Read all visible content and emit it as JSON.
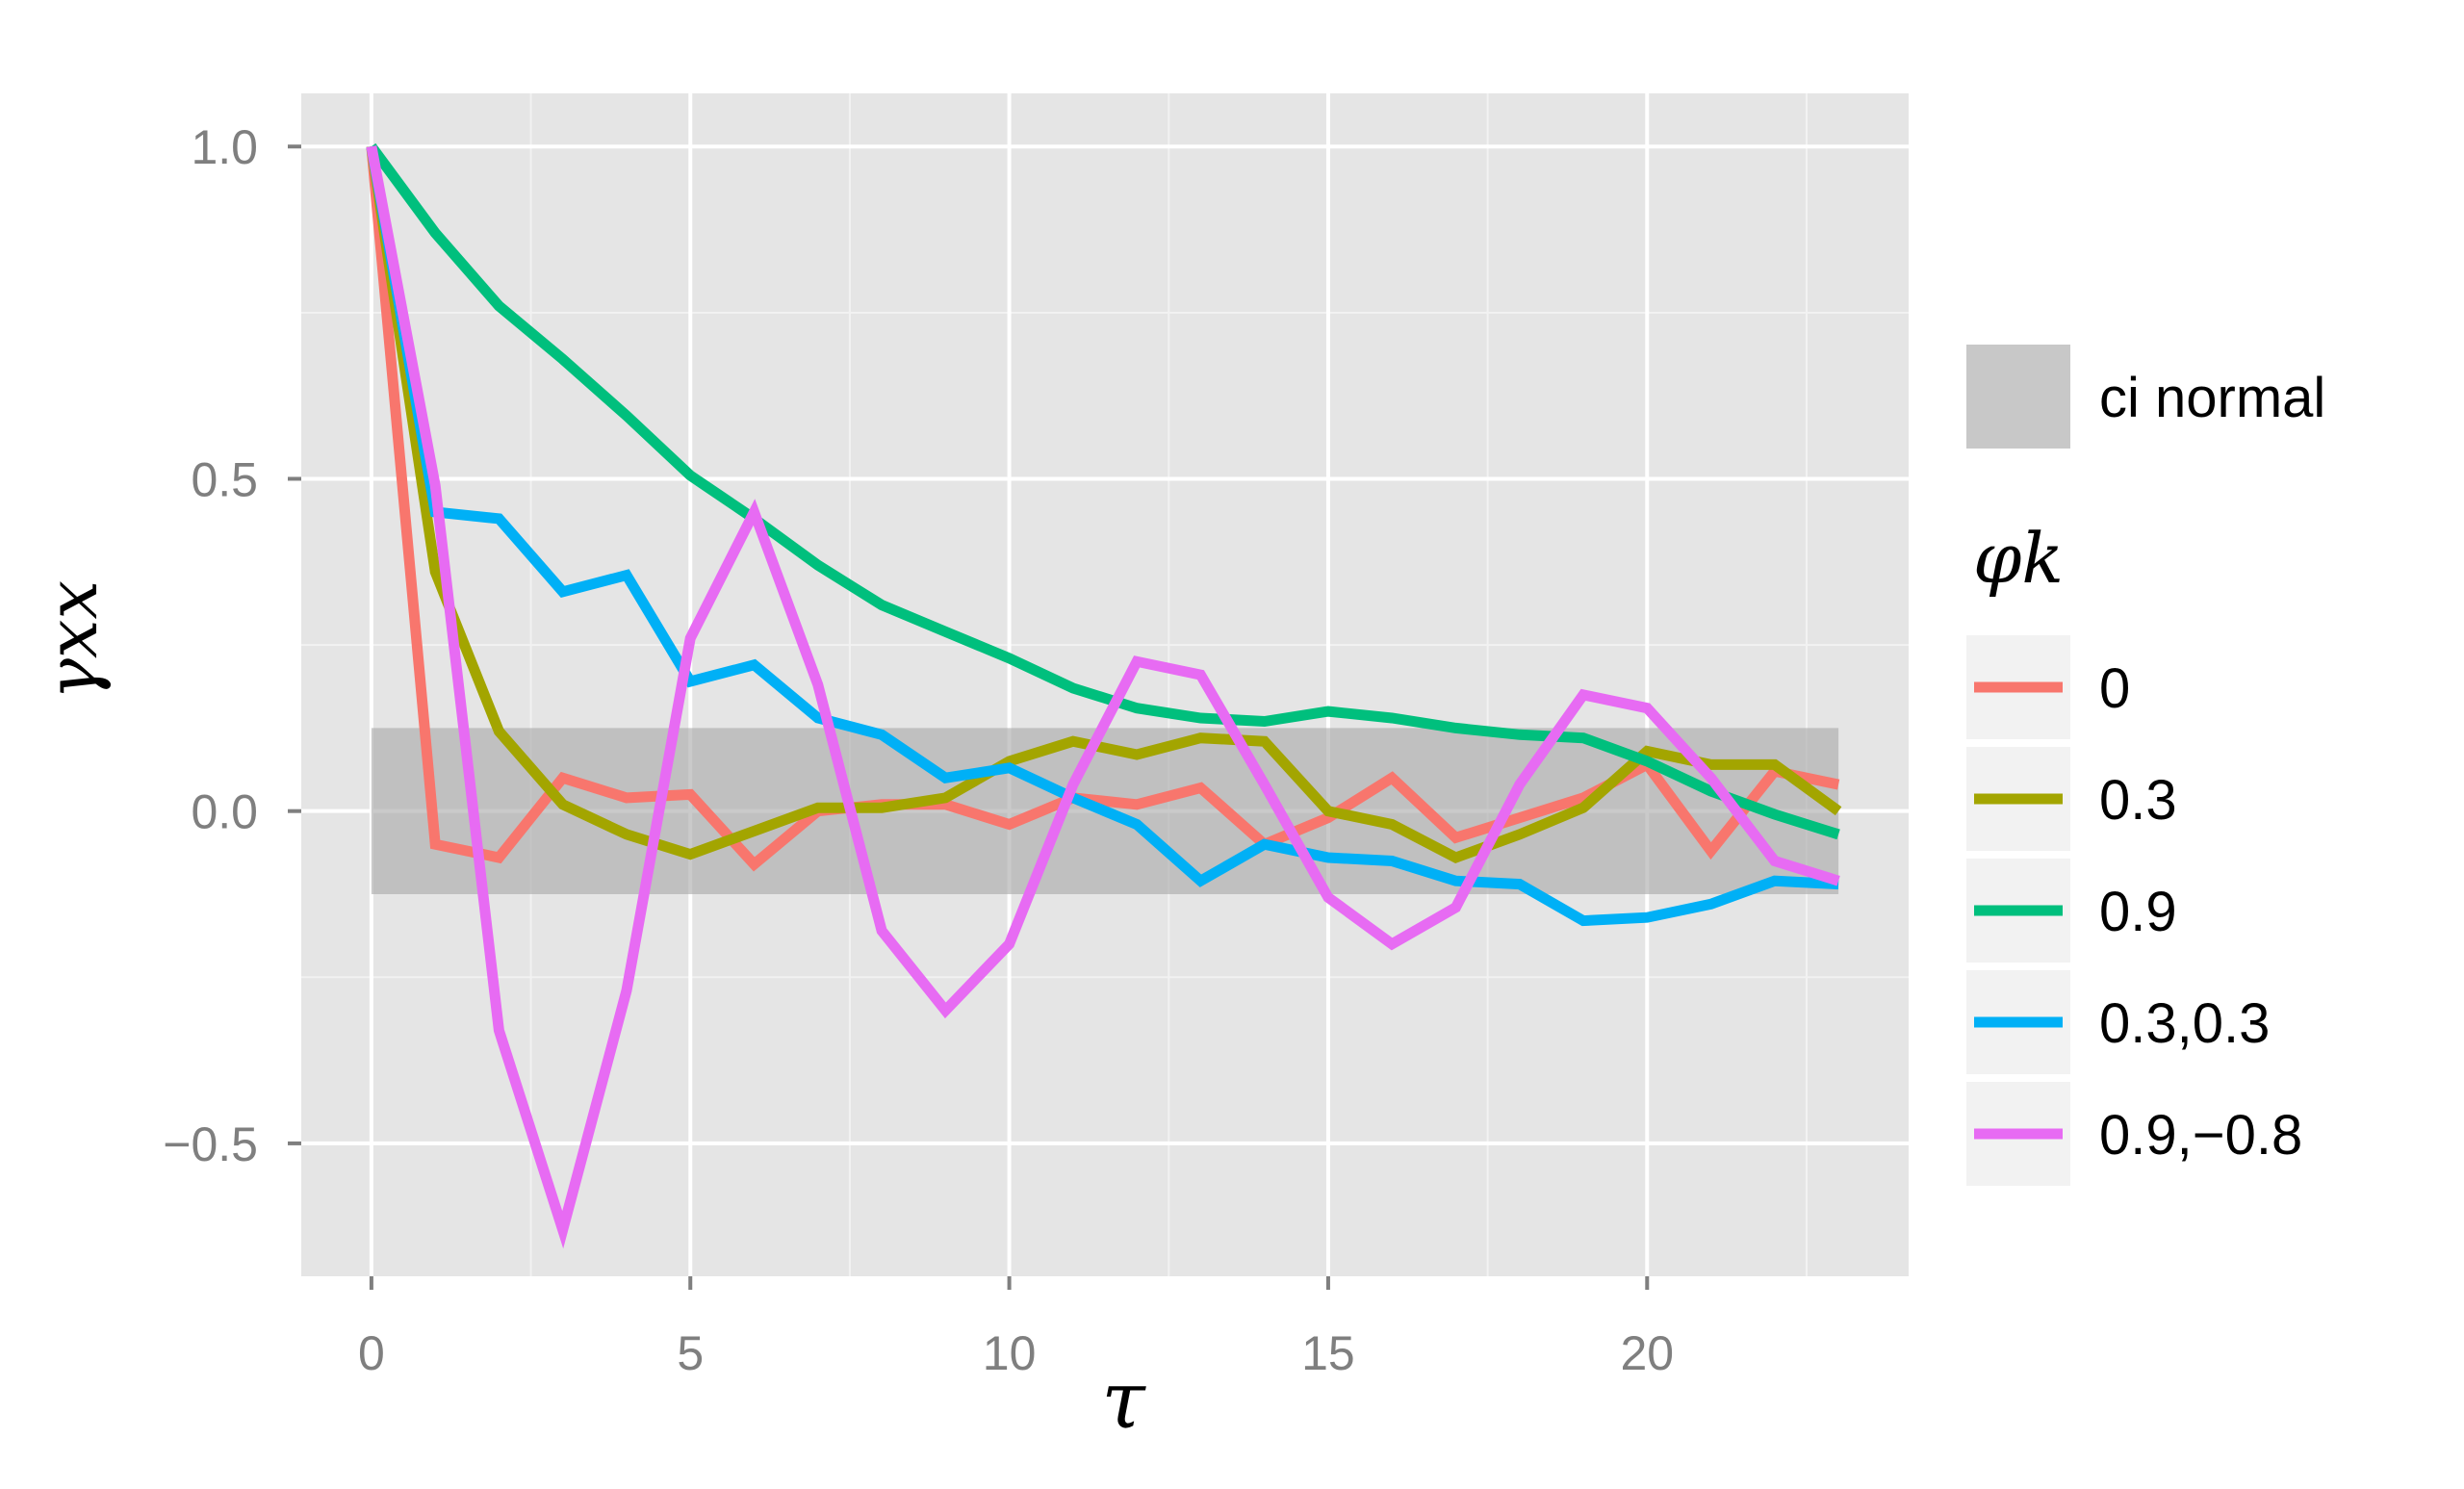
{
  "chart_data": {
    "type": "line",
    "title": "",
    "xlabel": "τ",
    "ylabel": "γxx",
    "xlim": [
      -1.1,
      24.1
    ],
    "ylim": [
      -0.7,
      1.08
    ],
    "x_ticks": [
      {
        "value": 0,
        "label": "0"
      },
      {
        "value": 5,
        "label": "5"
      },
      {
        "value": 10,
        "label": "10"
      },
      {
        "value": 15,
        "label": "15"
      },
      {
        "value": 20,
        "label": "20"
      }
    ],
    "y_ticks": [
      {
        "value": -0.5,
        "label": "−0.5"
      },
      {
        "value": 0,
        "label": "0.0"
      },
      {
        "value": 0.5,
        "label": "0.5"
      },
      {
        "value": 1,
        "label": "1.0"
      }
    ],
    "grid": true,
    "legend_position": "right",
    "ci_band": {
      "label": "ci normal",
      "lower": -0.125,
      "upper": 0.125,
      "x_start": 0,
      "x_end": 23,
      "color": "#a6a6a6"
    },
    "legend_title": "φk",
    "x": [
      0,
      1,
      2,
      3,
      4,
      5,
      6,
      7,
      8,
      9,
      10,
      11,
      12,
      13,
      14,
      15,
      16,
      17,
      18,
      19,
      20,
      21,
      22,
      23
    ],
    "series": [
      {
        "name": "0",
        "color": "#F8766D",
        "values": [
          1.0,
          -0.05,
          -0.07,
          0.05,
          0.02,
          0.025,
          -0.08,
          0.0,
          0.01,
          0.01,
          -0.02,
          0.02,
          0.01,
          0.035,
          -0.05,
          -0.01,
          0.05,
          -0.04,
          -0.01,
          0.02,
          0.07,
          -0.06,
          0.06,
          0.04
        ]
      },
      {
        "name": "0.3",
        "color": "#A3A500",
        "values": [
          1.0,
          0.36,
          0.12,
          0.01,
          -0.035,
          -0.065,
          -0.03,
          0.005,
          0.005,
          0.02,
          0.075,
          0.105,
          0.085,
          0.11,
          0.105,
          0.0,
          -0.02,
          -0.07,
          -0.035,
          0.005,
          0.09,
          0.07,
          0.07,
          0.0
        ]
      },
      {
        "name": "0.9",
        "color": "#00BF7D",
        "values": [
          1.0,
          0.87,
          0.76,
          0.68,
          0.595,
          0.505,
          0.44,
          0.37,
          0.31,
          0.27,
          0.23,
          0.185,
          0.155,
          0.14,
          0.135,
          0.15,
          0.14,
          0.125,
          0.115,
          0.11,
          0.075,
          0.03,
          -0.005,
          -0.035
        ]
      },
      {
        "name": "0.3,0.3",
        "color": "#00B0F6",
        "values": [
          1.0,
          0.45,
          0.44,
          0.33,
          0.355,
          0.195,
          0.22,
          0.14,
          0.115,
          0.05,
          0.065,
          0.02,
          -0.02,
          -0.105,
          -0.05,
          -0.07,
          -0.075,
          -0.105,
          -0.11,
          -0.165,
          -0.16,
          -0.14,
          -0.105,
          -0.11
        ]
      },
      {
        "name": "0.9,−0.8",
        "color": "#E76BF3",
        "values": [
          1.0,
          0.49,
          -0.33,
          -0.63,
          -0.27,
          0.26,
          0.45,
          0.19,
          -0.18,
          -0.3,
          -0.2,
          0.04,
          0.225,
          0.205,
          0.04,
          -0.13,
          -0.2,
          -0.145,
          0.04,
          0.175,
          0.155,
          0.05,
          -0.075,
          -0.105
        ]
      }
    ]
  }
}
